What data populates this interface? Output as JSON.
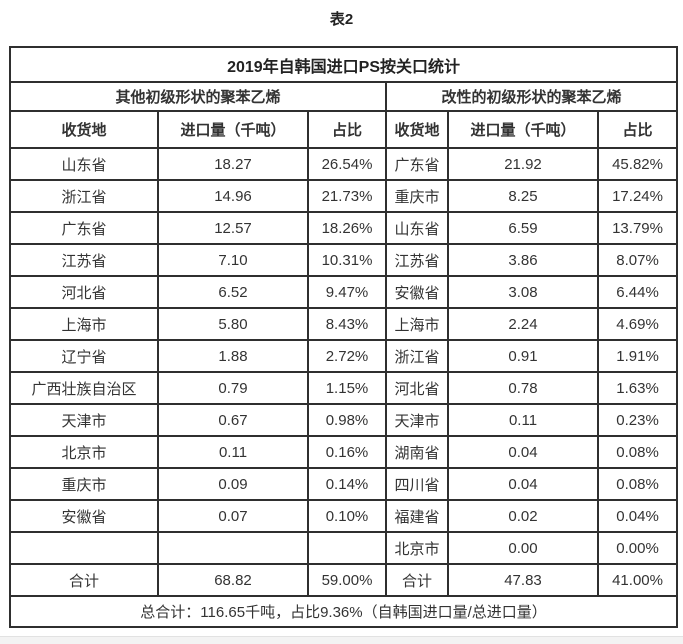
{
  "page": {
    "caption": "表2"
  },
  "table": {
    "title": "2019年自韩国进口PS按关口统计",
    "sections": {
      "left": "其他初级形状的聚苯乙烯",
      "right": "改性的初级形状的聚苯乙烯"
    },
    "columns": [
      "收货地",
      "进口量（千吨）",
      "占比"
    ],
    "rows": [
      {
        "l": [
          "山东省",
          "18.27",
          "26.54%"
        ],
        "r": [
          "广东省",
          "21.92",
          "45.82%"
        ]
      },
      {
        "l": [
          "浙江省",
          "14.96",
          "21.73%"
        ],
        "r": [
          "重庆市",
          "8.25",
          "17.24%"
        ]
      },
      {
        "l": [
          "广东省",
          "12.57",
          "18.26%"
        ],
        "r": [
          "山东省",
          "6.59",
          "13.79%"
        ]
      },
      {
        "l": [
          "江苏省",
          "7.10",
          "10.31%"
        ],
        "r": [
          "江苏省",
          "3.86",
          "8.07%"
        ]
      },
      {
        "l": [
          "河北省",
          "6.52",
          "9.47%"
        ],
        "r": [
          "安徽省",
          "3.08",
          "6.44%"
        ]
      },
      {
        "l": [
          "上海市",
          "5.80",
          "8.43%"
        ],
        "r": [
          "上海市",
          "2.24",
          "4.69%"
        ]
      },
      {
        "l": [
          "辽宁省",
          "1.88",
          "2.72%"
        ],
        "r": [
          "浙江省",
          "0.91",
          "1.91%"
        ]
      },
      {
        "l": [
          "广西壮族自治区",
          "0.79",
          "1.15%"
        ],
        "r": [
          "河北省",
          "0.78",
          "1.63%"
        ]
      },
      {
        "l": [
          "天津市",
          "0.67",
          "0.98%"
        ],
        "r": [
          "天津市",
          "0.11",
          "0.23%"
        ]
      },
      {
        "l": [
          "北京市",
          "0.11",
          "0.16%"
        ],
        "r": [
          "湖南省",
          "0.04",
          "0.08%"
        ]
      },
      {
        "l": [
          "重庆市",
          "0.09",
          "0.14%"
        ],
        "r": [
          "四川省",
          "0.04",
          "0.08%"
        ]
      },
      {
        "l": [
          "安徽省",
          "0.07",
          "0.10%"
        ],
        "r": [
          "福建省",
          "0.02",
          "0.04%"
        ]
      },
      {
        "l": [
          "",
          "",
          ""
        ],
        "r": [
          "北京市",
          "0.00",
          "0.00%"
        ]
      }
    ],
    "total": {
      "l": [
        "合计",
        "68.82",
        "59.00%"
      ],
      "r": [
        "合计",
        "47.83",
        "41.00%"
      ]
    },
    "footer": "总合计：116.65千吨，占比9.36%（自韩国进口量/总进口量）"
  }
}
